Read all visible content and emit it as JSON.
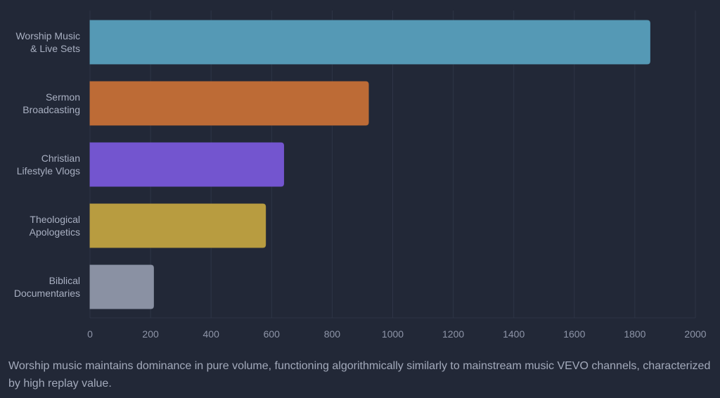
{
  "chart_data": {
    "type": "bar",
    "orientation": "horizontal",
    "categories": [
      [
        "Worship Music",
        "& Live Sets"
      ],
      [
        "Sermon",
        "Broadcasting"
      ],
      [
        "Christian",
        "Lifestyle Vlogs"
      ],
      [
        "Theological",
        "Apologetics"
      ],
      [
        "Biblical",
        "Documentaries"
      ]
    ],
    "values": [
      1850,
      920,
      640,
      580,
      210
    ],
    "colors": [
      "#5599b5",
      "#bd6b36",
      "#7355cf",
      "#b89c40",
      "#8a91a3"
    ],
    "xlim": [
      0,
      2000
    ],
    "xticks": [
      0,
      200,
      400,
      600,
      800,
      1000,
      1200,
      1400,
      1600,
      1800,
      2000
    ],
    "grid": "vertical",
    "title": "",
    "xlabel": "",
    "ylabel": ""
  },
  "caption": "Worship music maintains dominance in pure volume, functioning algorithmically similarly to mainstream music VEVO channels, characterized by high replay value."
}
